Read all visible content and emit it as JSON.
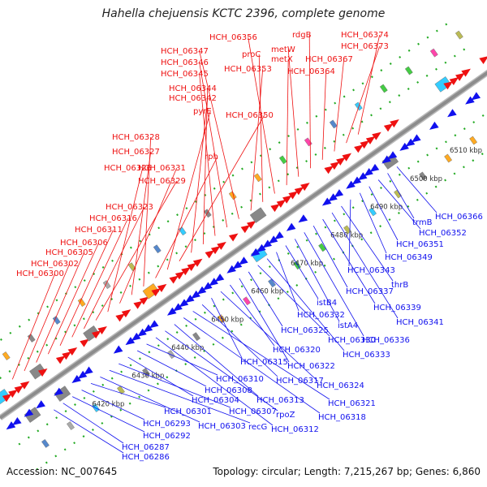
{
  "title": "Hahella chejuensis KCTC 2396, complete genome",
  "footer": {
    "accession": "Accession: NC_007645",
    "topology": "Topology: circular; Length: 7,215,267 bp; Genes: 6,860"
  },
  "colors": {
    "forward": "#ee1111",
    "reverse": "#1111ee",
    "backbone": "#8c8c8c",
    "dots": "#22aa22"
  },
  "ticks": [
    "6420 kbp",
    "6430 kbp",
    "6440 kbp",
    "6450 kbp",
    "6460 kbp",
    "6470 kbp",
    "6480 kbp",
    "6490 kbp",
    "6500 kbp",
    "6510 kbp"
  ],
  "forward_labels": [
    "HCH_06300",
    "HCH_06302",
    "HCH_06305",
    "HCH_06306",
    "HCH_06311",
    "HCH_06316",
    "HCH_06323",
    "HCH_06329",
    "HCH_06326",
    "HCH_06331",
    "HCH_06327",
    "HCH_06328",
    "rph",
    "pyrE",
    "HCH_06350",
    "HCH_06342",
    "HCH_06344",
    "HCH_06345",
    "HCH_06346",
    "HCH_06347",
    "HCH_06353",
    "proC",
    "HCH_06356",
    "metX",
    "metW",
    "rdgB",
    "HCH_06364",
    "HCH_06367",
    "HCH_06373",
    "HCH_06374"
  ],
  "reverse_labels": [
    "HCH_06286",
    "HCH_06287",
    "HCH_06292",
    "HCH_06293",
    "HCH_06301",
    "HCH_06303",
    "recG",
    "HCH_06307",
    "HCH_06304",
    "HCH_06308",
    "HCH_06310",
    "HCH_06312",
    "rpoZ",
    "HCH_06313",
    "HCH_06318",
    "HCH_06321",
    "HCH_06317",
    "HCH_06315",
    "HCH_06324",
    "HCH_06320",
    "HCH_06322",
    "HCH_06325",
    "HCH_06330",
    "HCH_06333",
    "HCH_06332",
    "istB4",
    "istA4",
    "HCH_06336",
    "HCH_06337",
    "HCH_06339",
    "HCH_06341",
    "thrB",
    "HCH_06343",
    "HCH_06349",
    "HCH_06351",
    "HCH_06352",
    "trmB",
    "HCH_06366"
  ]
}
